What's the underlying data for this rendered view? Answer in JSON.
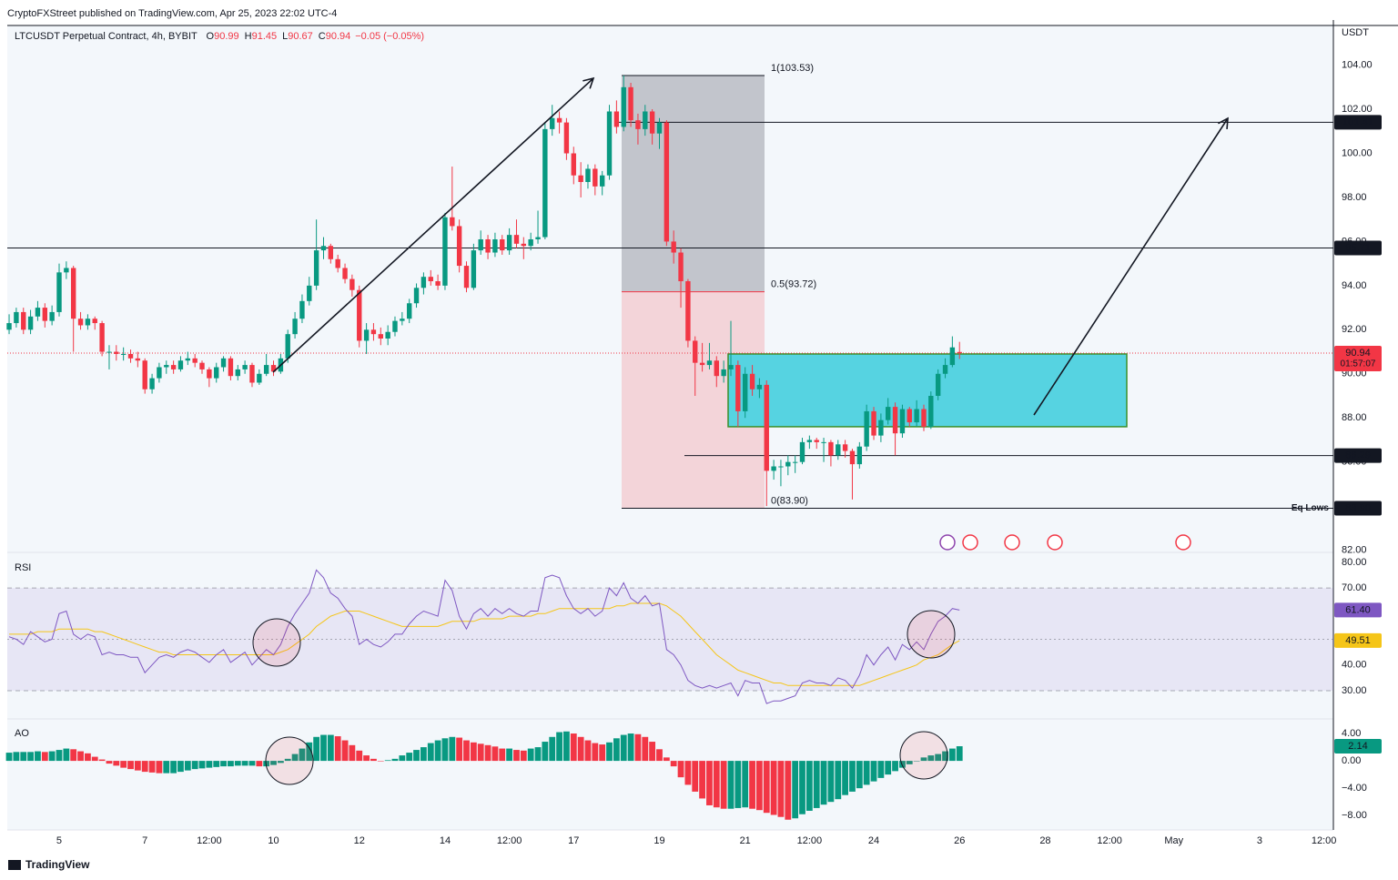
{
  "publisher": "CryptoFXStreet published on TradingView.com, Apr 25, 2023 22:02 UTC-4",
  "brand": "TradingView",
  "chart_data": {
    "type": "candlestick",
    "title": "LTCUSDT Perpetual Contract, 4h, BYBIT",
    "ohlc_letters": [
      "O",
      "H",
      "L",
      "C"
    ],
    "change": "−0.05 (−0.05%)",
    "unit": "USDT",
    "up_color": "#089981",
    "down_color": "#f23645",
    "xlim": [
      3.79,
      34.72
    ],
    "xticks": [
      5,
      7,
      {
        "value": 8.5,
        "label": "12:00"
      },
      10,
      12,
      14,
      {
        "value": 15.5,
        "label": "12:00"
      },
      17,
      19,
      21,
      {
        "value": 22.5,
        "label": "12:00"
      },
      24,
      26,
      28,
      {
        "value": 29.5,
        "label": "12:00"
      },
      {
        "value": 31,
        "label": "May"
      },
      {
        "value": 33,
        "label": "3"
      },
      {
        "value": 34.5,
        "label": "12:00"
      }
    ],
    "ylim": [
      81.9,
      105.8
    ],
    "yticks": [
      {
        "value": 82,
        "label": "82.00"
      },
      {
        "value": 84,
        "label": "84.00"
      },
      {
        "value": 86,
        "label": "86.00"
      },
      {
        "value": 88,
        "label": "88.00"
      },
      {
        "value": 90,
        "label": "90.00"
      },
      {
        "value": 92,
        "label": "92.00"
      },
      {
        "value": 94,
        "label": "94.00"
      },
      {
        "value": 96,
        "label": "96.00"
      },
      {
        "value": 98,
        "label": "98.00"
      },
      {
        "value": 100,
        "label": "100.00"
      },
      {
        "value": 102,
        "label": "102.00"
      },
      {
        "value": 104,
        "label": "104.00"
      }
    ],
    "x": [
      3.833,
      4,
      4.167,
      4.333,
      4.5,
      4.667,
      4.833,
      5,
      5.167,
      5.333,
      5.5,
      5.667,
      5.833,
      6,
      6.167,
      6.333,
      6.5,
      6.667,
      6.833,
      7,
      7.167,
      7.333,
      7.5,
      7.667,
      7.833,
      8,
      8.167,
      8.333,
      8.5,
      8.667,
      8.833,
      9,
      9.167,
      9.333,
      9.5,
      9.667,
      9.833,
      10,
      10.167,
      10.333,
      10.5,
      10.667,
      10.833,
      11,
      11.167,
      11.333,
      11.5,
      11.667,
      11.833,
      12,
      12.167,
      12.333,
      12.5,
      12.667,
      12.833,
      13,
      13.167,
      13.333,
      13.5,
      13.667,
      13.833,
      14,
      14.167,
      14.333,
      14.5,
      14.667,
      14.833,
      15,
      15.167,
      15.333,
      15.5,
      15.667,
      15.833,
      16,
      16.167,
      16.333,
      16.5,
      16.667,
      16.833,
      17,
      17.167,
      17.333,
      17.5,
      17.667,
      17.833,
      18,
      18.167,
      18.333,
      18.5,
      18.667,
      18.833,
      19,
      19.167,
      19.333,
      19.5,
      19.667,
      19.833,
      20,
      20.167,
      20.333,
      20.5,
      20.667,
      20.833,
      21,
      21.167,
      21.333,
      21.5,
      21.667,
      21.833,
      22,
      22.167,
      22.333,
      22.5,
      22.667,
      22.833,
      23,
      23.167,
      23.333,
      23.5,
      23.667,
      23.833,
      24,
      24.167,
      24.333,
      24.5,
      24.667,
      24.833,
      25,
      25.167,
      25.333,
      25.5,
      25.667,
      25.833,
      26
    ],
    "candles": [
      [
        92.0,
        92.7,
        91.8,
        92.3
      ],
      [
        92.3,
        93.0,
        92.1,
        92.8
      ],
      [
        92.8,
        93.0,
        91.8,
        92.0
      ],
      [
        92.0,
        92.9,
        91.8,
        92.6
      ],
      [
        92.6,
        93.3,
        92.4,
        93.0
      ],
      [
        93.0,
        93.2,
        92.1,
        92.4
      ],
      [
        92.4,
        93.1,
        92.2,
        92.8
      ],
      [
        92.8,
        95.0,
        92.6,
        94.6
      ],
      [
        94.6,
        95.1,
        94.3,
        94.8
      ],
      [
        94.8,
        94.9,
        91.0,
        92.5
      ],
      [
        92.5,
        92.8,
        92.0,
        92.2
      ],
      [
        92.2,
        92.7,
        92.0,
        92.5
      ],
      [
        92.5,
        92.6,
        92.0,
        92.3
      ],
      [
        92.3,
        92.4,
        90.8,
        91.0
      ],
      [
        91.0,
        91.3,
        90.2,
        91.0
      ],
      [
        91.0,
        91.3,
        90.6,
        90.9
      ],
      [
        90.9,
        91.2,
        90.6,
        90.9
      ],
      [
        90.9,
        91.1,
        90.5,
        90.7
      ],
      [
        90.7,
        91.0,
        90.3,
        90.6
      ],
      [
        90.6,
        90.7,
        89.1,
        89.3
      ],
      [
        89.3,
        90.0,
        89.1,
        89.8
      ],
      [
        89.8,
        90.5,
        89.6,
        90.3
      ],
      [
        90.3,
        90.6,
        90.0,
        90.4
      ],
      [
        90.4,
        90.6,
        90.0,
        90.2
      ],
      [
        90.2,
        90.8,
        90.1,
        90.6
      ],
      [
        90.6,
        91.0,
        90.4,
        90.7
      ],
      [
        90.7,
        90.9,
        90.3,
        90.5
      ],
      [
        90.5,
        90.6,
        90.0,
        90.2
      ],
      [
        90.2,
        90.3,
        89.4,
        89.8
      ],
      [
        89.8,
        90.5,
        89.6,
        90.3
      ],
      [
        90.3,
        90.8,
        90.1,
        90.7
      ],
      [
        90.7,
        90.8,
        89.7,
        89.9
      ],
      [
        89.9,
        90.4,
        89.7,
        90.2
      ],
      [
        90.2,
        90.6,
        90.0,
        90.4
      ],
      [
        90.4,
        90.5,
        89.4,
        89.6
      ],
      [
        89.6,
        90.2,
        89.5,
        90.0
      ],
      [
        90.0,
        90.9,
        89.9,
        90.4
      ],
      [
        90.4,
        90.6,
        89.9,
        90.1
      ],
      [
        90.1,
        90.9,
        90.0,
        90.7
      ],
      [
        90.7,
        92.0,
        90.5,
        91.8
      ],
      [
        91.8,
        92.8,
        91.6,
        92.5
      ],
      [
        92.5,
        93.6,
        92.3,
        93.3
      ],
      [
        93.3,
        94.4,
        93.1,
        94.0
      ],
      [
        94.0,
        97.0,
        93.8,
        95.6
      ],
      [
        95.6,
        96.2,
        95.2,
        95.8
      ],
      [
        95.8,
        95.9,
        95.0,
        95.2
      ],
      [
        95.2,
        95.4,
        94.6,
        94.8
      ],
      [
        94.8,
        95.0,
        94.1,
        94.3
      ],
      [
        94.3,
        94.5,
        93.5,
        93.8
      ],
      [
        93.8,
        94.0,
        91.2,
        91.5
      ],
      [
        91.5,
        92.3,
        90.9,
        92.0
      ],
      [
        92.0,
        92.3,
        91.5,
        91.8
      ],
      [
        91.8,
        92.1,
        91.3,
        91.6
      ],
      [
        91.6,
        92.2,
        91.3,
        91.9
      ],
      [
        91.9,
        92.6,
        91.7,
        92.4
      ],
      [
        92.4,
        92.8,
        92.2,
        92.5
      ],
      [
        92.5,
        93.4,
        92.3,
        93.2
      ],
      [
        93.2,
        94.1,
        93.0,
        93.9
      ],
      [
        93.9,
        94.6,
        93.6,
        94.4
      ],
      [
        94.4,
        94.7,
        94.0,
        94.2
      ],
      [
        94.2,
        94.5,
        93.8,
        94.0
      ],
      [
        94.0,
        97.3,
        93.8,
        97.1
      ],
      [
        97.1,
        99.4,
        96.5,
        96.7
      ],
      [
        96.7,
        97.0,
        94.6,
        94.9
      ],
      [
        94.9,
        95.1,
        93.7,
        93.9
      ],
      [
        93.9,
        95.9,
        93.8,
        95.6
      ],
      [
        95.6,
        96.5,
        95.4,
        96.1
      ],
      [
        96.1,
        96.3,
        95.2,
        95.5
      ],
      [
        95.5,
        96.4,
        95.3,
        96.1
      ],
      [
        96.1,
        96.3,
        95.4,
        95.6
      ],
      [
        95.6,
        96.6,
        95.4,
        96.3
      ],
      [
        96.3,
        97.0,
        95.7,
        95.9
      ],
      [
        95.9,
        96.2,
        95.2,
        95.8
      ],
      [
        95.8,
        96.4,
        95.6,
        96.1
      ],
      [
        96.1,
        97.4,
        95.9,
        96.2
      ],
      [
        96.2,
        101.4,
        96.1,
        101.1
      ],
      [
        101.1,
        102.2,
        100.8,
        101.6
      ],
      [
        101.6,
        101.9,
        100.9,
        101.4
      ],
      [
        101.4,
        101.6,
        99.7,
        100.0
      ],
      [
        100.0,
        100.3,
        98.6,
        99.0
      ],
      [
        99.0,
        99.6,
        98.0,
        98.7
      ],
      [
        98.7,
        99.5,
        98.4,
        99.3
      ],
      [
        99.3,
        99.5,
        98.1,
        98.5
      ],
      [
        98.5,
        99.2,
        98.1,
        99.0
      ],
      [
        99.0,
        102.2,
        98.8,
        101.9
      ],
      [
        101.9,
        102.4,
        100.9,
        101.2
      ],
      [
        101.2,
        103.53,
        101.0,
        103.0
      ],
      [
        103.0,
        103.2,
        101.2,
        101.5
      ],
      [
        101.5,
        101.8,
        100.4,
        101.1
      ],
      [
        101.1,
        102.2,
        100.8,
        101.9
      ],
      [
        101.9,
        102.0,
        100.4,
        100.9
      ],
      [
        100.9,
        101.6,
        100.2,
        101.4
      ],
      [
        101.4,
        101.5,
        95.8,
        96.0
      ],
      [
        96.0,
        96.5,
        95.0,
        95.5
      ],
      [
        95.5,
        95.7,
        93.0,
        94.2
      ],
      [
        94.2,
        94.3,
        91.2,
        91.5
      ],
      [
        91.5,
        91.7,
        89.0,
        90.5
      ],
      [
        90.5,
        91.4,
        90.1,
        90.4
      ],
      [
        90.4,
        91.4,
        90.2,
        90.6
      ],
      [
        90.6,
        90.8,
        89.4,
        89.9
      ],
      [
        89.9,
        90.6,
        89.6,
        90.2
      ],
      [
        90.2,
        92.4,
        89.9,
        90.4
      ],
      [
        90.4,
        90.6,
        87.6,
        88.3
      ],
      [
        88.3,
        90.3,
        88.0,
        90.0
      ],
      [
        90.0,
        90.4,
        89.0,
        89.3
      ],
      [
        89.3,
        89.8,
        88.9,
        89.5
      ],
      [
        89.5,
        89.7,
        84.0,
        85.6
      ],
      [
        85.6,
        86.1,
        85.2,
        85.8
      ],
      [
        85.8,
        86.1,
        84.9,
        85.8
      ],
      [
        85.8,
        86.3,
        85.4,
        86.0
      ],
      [
        86.0,
        86.3,
        85.5,
        86.0
      ],
      [
        86.0,
        87.1,
        85.9,
        86.9
      ],
      [
        86.9,
        87.2,
        86.6,
        87.0
      ],
      [
        87.0,
        87.1,
        86.6,
        86.9
      ],
      [
        86.9,
        87.1,
        86.0,
        86.9
      ],
      [
        86.9,
        87.0,
        85.8,
        86.3
      ],
      [
        86.3,
        87.0,
        86.1,
        86.8
      ],
      [
        86.8,
        87.0,
        86.2,
        86.5
      ],
      [
        86.5,
        86.6,
        84.3,
        85.9
      ],
      [
        85.9,
        86.9,
        85.7,
        86.7
      ],
      [
        86.7,
        88.6,
        86.5,
        88.3
      ],
      [
        88.3,
        88.5,
        87.0,
        87.2
      ],
      [
        87.2,
        88.2,
        86.9,
        87.9
      ],
      [
        87.9,
        88.9,
        87.7,
        88.5
      ],
      [
        88.5,
        88.7,
        86.3,
        87.3
      ],
      [
        87.3,
        88.6,
        87.1,
        88.4
      ],
      [
        88.4,
        88.5,
        87.6,
        87.8
      ],
      [
        87.8,
        88.8,
        87.6,
        88.4
      ],
      [
        88.4,
        88.6,
        87.4,
        87.6
      ],
      [
        87.6,
        89.2,
        87.5,
        89.0
      ],
      [
        89.0,
        90.2,
        88.8,
        90.0
      ],
      [
        90.0,
        90.7,
        89.8,
        90.4
      ],
      [
        90.4,
        91.7,
        90.3,
        91.2
      ],
      [
        90.99,
        91.45,
        90.67,
        90.94
      ]
    ],
    "last_price": 90.94,
    "countdown": "01:57:07",
    "price_lines": [
      101.41,
      95.71,
      86.29,
      {
        "value": 83.9,
        "label": "83.90"
      }
    ],
    "eq_lows": "Eq Lows",
    "fib": [
      {
        "value": 103.53,
        "label": "1(103.53)"
      },
      {
        "value": 93.72,
        "label": "0.5(93.72)"
      },
      {
        "value": 83.9,
        "label": "0(83.90)"
      }
    ],
    "zone": {
      "low": 87.6,
      "high": 90.9
    },
    "rsi": {
      "name": "RSI",
      "color": "#7e57c2",
      "ma_color": "#f5c518",
      "ylim": [
        19,
        83.5
      ],
      "yticks": [
        {
          "value": 30,
          "label": "30.00"
        },
        {
          "value": 40,
          "label": "40.00"
        },
        {
          "value": 50,
          "label": "50.00"
        },
        {
          "value": 60,
          "label": "60.00"
        },
        {
          "value": 70,
          "label": "70.00"
        },
        {
          "value": 80,
          "label": "80.00"
        }
      ],
      "levels": [
        70,
        50,
        30
      ],
      "values": [
        51,
        50,
        48,
        53,
        51,
        49,
        50,
        60,
        61,
        52,
        50,
        52,
        51,
        44,
        45,
        44,
        44,
        43,
        43,
        37,
        40,
        43,
        44,
        43,
        45,
        46,
        45,
        43,
        41,
        44,
        46,
        41,
        43,
        45,
        40,
        43,
        46,
        44,
        48,
        55,
        60,
        64,
        68,
        77,
        74,
        68,
        66,
        62,
        59,
        48,
        50,
        48,
        47,
        49,
        52,
        52,
        56,
        59,
        61,
        60,
        59,
        73,
        69,
        59,
        54,
        60,
        62,
        59,
        62,
        60,
        62,
        60,
        59,
        61,
        61,
        74,
        75,
        74,
        67,
        62,
        60,
        62,
        59,
        61,
        70,
        67,
        72,
        66,
        64,
        67,
        63,
        64,
        46,
        44,
        40,
        34,
        32,
        31,
        32,
        31,
        32,
        33,
        28,
        34,
        33,
        33,
        25,
        26,
        26,
        27,
        28,
        33,
        34,
        33,
        33,
        32,
        35,
        34,
        31,
        36,
        44,
        40,
        44,
        47,
        42,
        48,
        46,
        49,
        46,
        52,
        57,
        59,
        62,
        61.4
      ],
      "value_label": "61.40",
      "ma_values": [
        52,
        52,
        52,
        52,
        53,
        53,
        53,
        54,
        54,
        54,
        54,
        54,
        53,
        53,
        52,
        51,
        50,
        49,
        48,
        47,
        46,
        45,
        45,
        44,
        44,
        44,
        44,
        44,
        44,
        44,
        44,
        44,
        44,
        44,
        44,
        44,
        44,
        44,
        45,
        46,
        48,
        50,
        52,
        55,
        57,
        59,
        60,
        61,
        61,
        61,
        60,
        59,
        58,
        57,
        56,
        55,
        55,
        55,
        55,
        55,
        55,
        56,
        57,
        57,
        57,
        57,
        58,
        58,
        58,
        58,
        59,
        59,
        59,
        59,
        60,
        60,
        61,
        62,
        62,
        62,
        62,
        62,
        62,
        62,
        62,
        63,
        63,
        64,
        64,
        64,
        64,
        64,
        63,
        61,
        59,
        56,
        53,
        50,
        47,
        44,
        42,
        40,
        38,
        37,
        36,
        35,
        34,
        33,
        33,
        32,
        32,
        32,
        32,
        32,
        32,
        32,
        32,
        32,
        32,
        32,
        33,
        34,
        35,
        36,
        37,
        38,
        39,
        40,
        42,
        43,
        44,
        46,
        48,
        49.51
      ]
    },
    "ao": {
      "name": "AO",
      "ylim": [
        -10.1,
        6
      ],
      "yticks": [
        {
          "value": -8,
          "label": "−8.00"
        },
        {
          "value": -4,
          "label": "−4.00"
        },
        {
          "value": 0,
          "label": "0.00"
        },
        {
          "value": 4,
          "label": "4.00"
        }
      ],
      "values": [
        1.2,
        1.3,
        1.3,
        1.3,
        1.4,
        1.3,
        1.4,
        1.6,
        1.8,
        1.7,
        1.4,
        1.1,
        0.6,
        0.2,
        -0.4,
        -0.7,
        -1.0,
        -1.2,
        -1.4,
        -1.6,
        -1.7,
        -1.8,
        -1.8,
        -1.8,
        -1.6,
        -1.4,
        -1.2,
        -1.1,
        -1.0,
        -0.9,
        -0.8,
        -0.8,
        -0.7,
        -0.7,
        -0.7,
        -0.8,
        -0.8,
        -0.6,
        -0.3,
        0.3,
        1.0,
        1.8,
        2.7,
        3.5,
        3.8,
        3.8,
        3.6,
        3.0,
        2.3,
        1.5,
        0.8,
        0.3,
        0.0,
        0.1,
        0.3,
        0.8,
        1.2,
        1.6,
        2.0,
        2.6,
        3.0,
        3.3,
        3.5,
        3.4,
        3.0,
        2.7,
        2.5,
        2.3,
        2.1,
        1.8,
        1.8,
        1.6,
        1.5,
        1.8,
        2.0,
        2.8,
        3.5,
        4.2,
        4.3,
        4.0,
        3.5,
        3.0,
        2.6,
        2.4,
        2.7,
        3.3,
        3.8,
        4.0,
        3.9,
        3.5,
        2.8,
        1.7,
        0.5,
        -0.8,
        -2.4,
        -3.5,
        -4.5,
        -5.5,
        -6.5,
        -6.8,
        -7.0,
        -7.0,
        -6.9,
        -6.8,
        -7.0,
        -7.2,
        -7.6,
        -7.9,
        -8.2,
        -8.6,
        -8.4,
        -7.8,
        -7.3,
        -6.9,
        -6.4,
        -6.0,
        -5.6,
        -5.0,
        -4.5,
        -4.0,
        -3.5,
        -3.0,
        -2.5,
        -2.0,
        -1.5,
        -1.0,
        -0.5,
        0.0,
        0.5,
        0.8,
        1.0,
        1.4,
        1.8,
        2.14
      ]
    }
  }
}
